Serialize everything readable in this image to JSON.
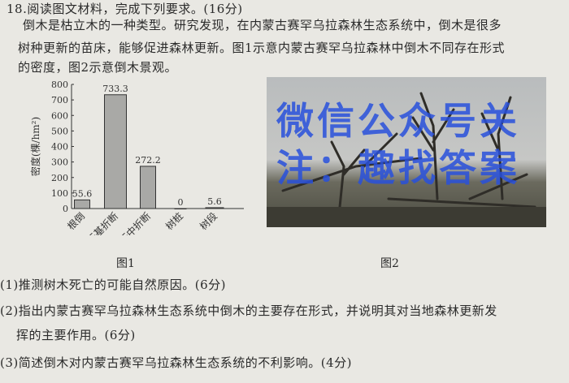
{
  "question": {
    "header": "18.阅读图文材料，完成下列要求。(16分)",
    "lines": [
      "倒木是枯立木的一种类型。研究发现，在内蒙古赛罕乌拉森林生态系统中，倒木是很多",
      "树种更新的苗床，能够促进森林更新。图1示意内蒙古赛罕乌拉森林中倒木不同存在形式",
      "的密度，图2示意倒木景观。"
    ]
  },
  "watermark": "微信公众号关注：趣找答案",
  "figure1": {
    "caption": "图1"
  },
  "figure2": {
    "caption": "图2",
    "image": "dead-fallen-trees-landscape-photo"
  },
  "chart_data": {
    "type": "bar",
    "categories": [
      "根倒",
      "干基折断",
      "干中折断",
      "树桩",
      "树段"
    ],
    "values": [
      55.6,
      733.3,
      272.2,
      0,
      5.6
    ],
    "data_labels": [
      "55.6",
      "733.3",
      "272.2",
      "0",
      "5.6"
    ],
    "ylabel": "密度(棵/hm²)",
    "xlabel": "",
    "ylim": [
      0,
      800
    ],
    "yticks": [
      0,
      100,
      200,
      300,
      400,
      500,
      600,
      700,
      800
    ],
    "bar_color": "#a9a9a6",
    "grid": false
  },
  "subquestions": [
    {
      "text": "(1)推测树木死亡的可能自然原因。(6分)"
    },
    {
      "text": "(2)指出内蒙古赛罕乌拉森林生态系统中倒木的主要存在形式，并说明其对当地森林更新发",
      "cont": "挥的主要作用。(6分)"
    },
    {
      "text": "(3)简述倒木对内蒙古赛罕乌拉森林生态系统的不利影响。(4分)"
    }
  ]
}
